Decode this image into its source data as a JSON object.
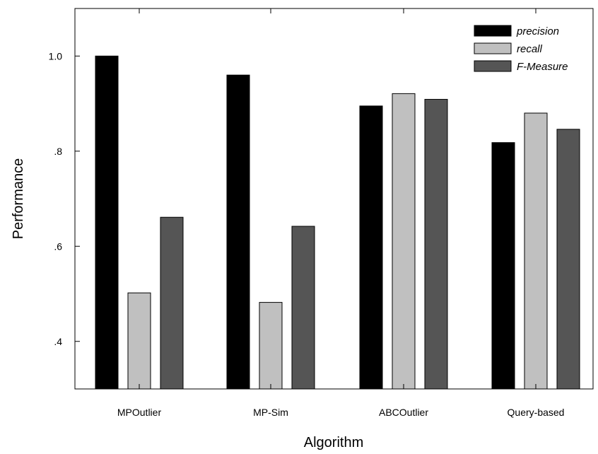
{
  "chart_data": {
    "type": "bar",
    "title": "",
    "xlabel": "Algorithm",
    "ylabel": "Performance",
    "categories": [
      "MPOutlier",
      "MP-Sim",
      "ABCOutlier",
      "Query-based"
    ],
    "series": [
      {
        "name": "precision",
        "values": [
          1.0,
          0.96,
          0.895,
          0.818
        ],
        "color": "#000000"
      },
      {
        "name": "recall",
        "values": [
          0.502,
          0.482,
          0.921,
          0.88
        ],
        "color": "#c0c0c0"
      },
      {
        "name": "F-Measure",
        "values": [
          0.661,
          0.642,
          0.909,
          0.846
        ],
        "color": "#555555"
      }
    ],
    "ylim": [
      0.3,
      1.1
    ],
    "yticks": [
      0.4,
      0.6,
      0.8,
      1.0
    ],
    "ytick_labels": [
      ".4",
      ".6",
      ".8",
      "1.0"
    ],
    "grid": false,
    "legend_position": "top-right"
  }
}
